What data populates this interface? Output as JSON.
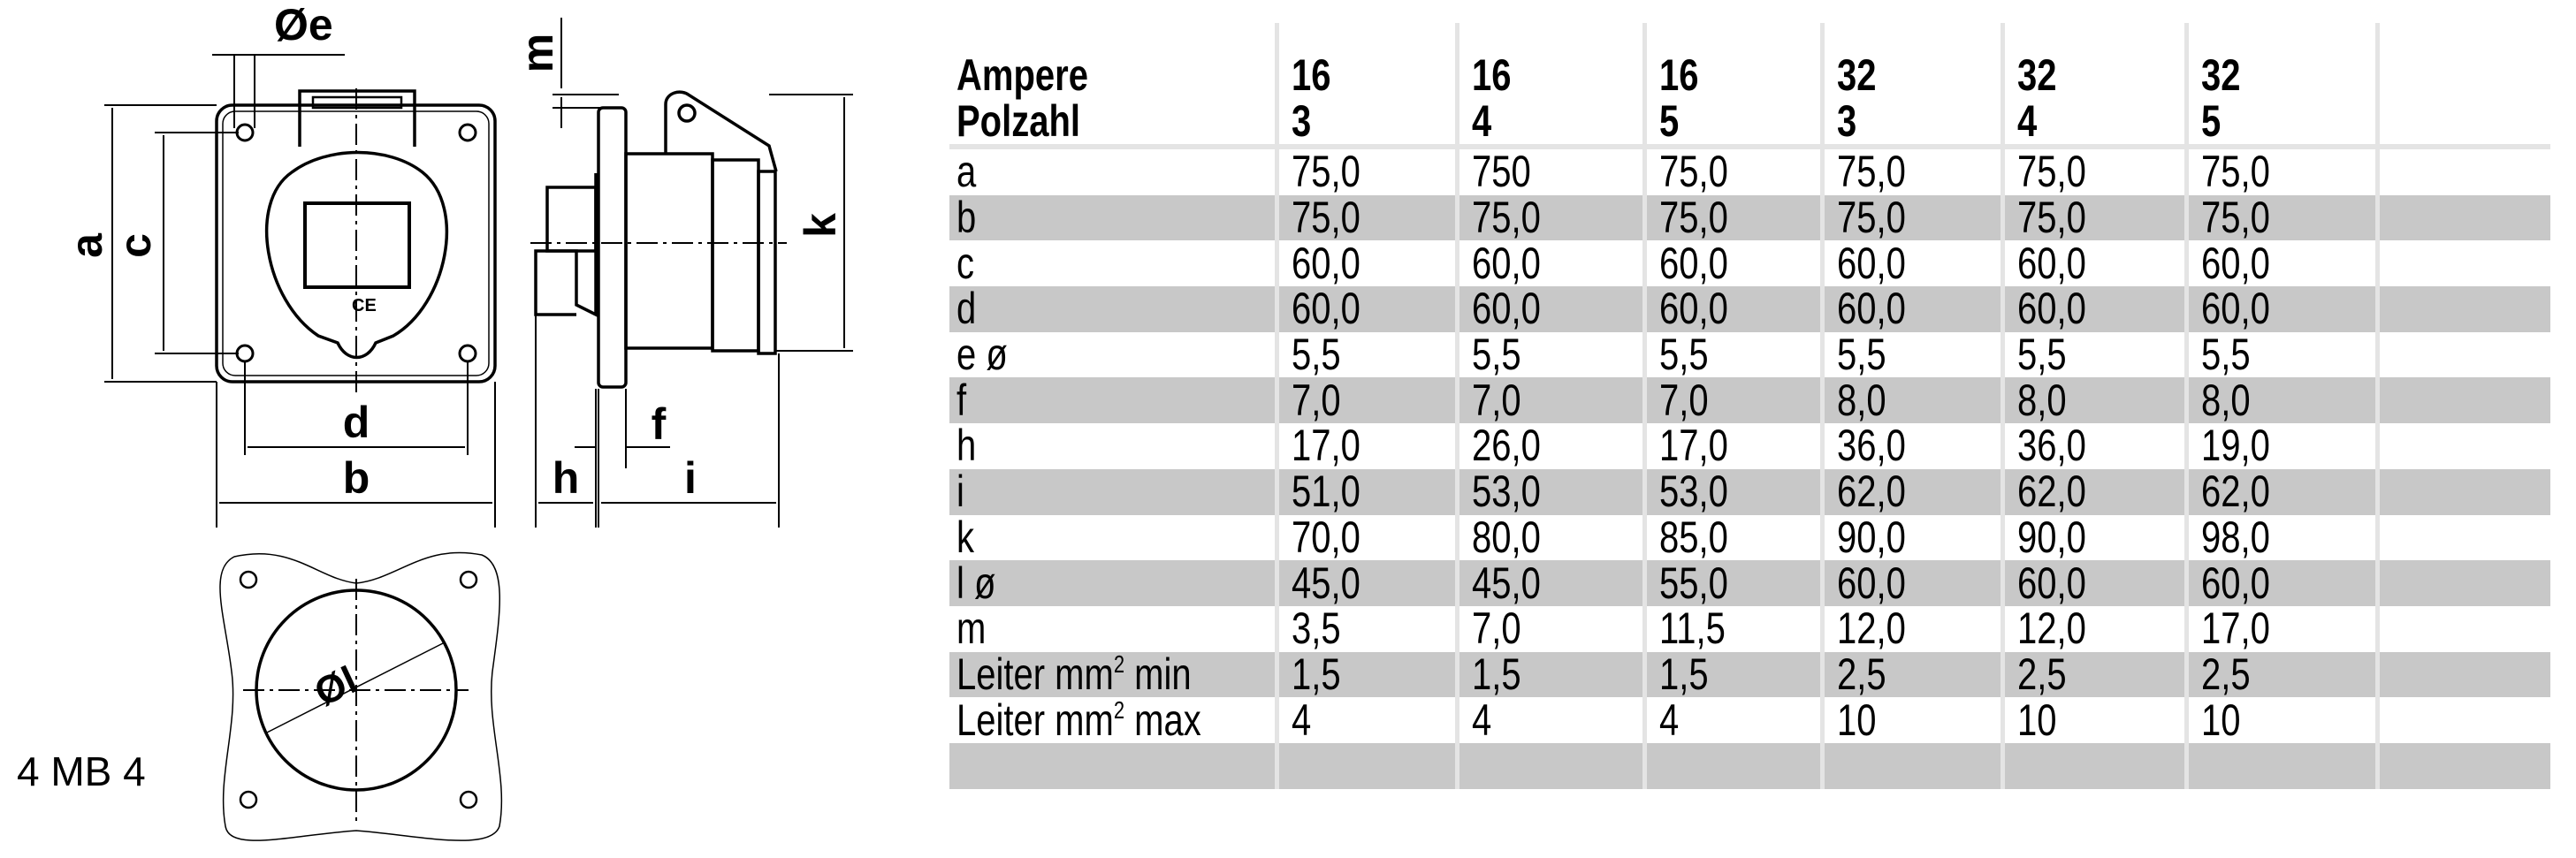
{
  "drawing": {
    "labels": {
      "a": "a",
      "b": "b",
      "c": "c",
      "d": "d",
      "e": "Øe",
      "f": "f",
      "h": "h",
      "i": "i",
      "k": "k",
      "m": "m",
      "l": "Øl"
    },
    "model": "4 MB 4"
  },
  "table": {
    "header": {
      "row1_label": "Ampere",
      "row2_label": "Polzahl",
      "columns": [
        {
          "ampere": "16",
          "polzahl": "3"
        },
        {
          "ampere": "16",
          "polzahl": "4"
        },
        {
          "ampere": "16",
          "polzahl": "5"
        },
        {
          "ampere": "32",
          "polzahl": "3"
        },
        {
          "ampere": "32",
          "polzahl": "4"
        },
        {
          "ampere": "32",
          "polzahl": "5"
        }
      ]
    },
    "rows": [
      {
        "label": "a",
        "values": [
          "75,0",
          "750",
          "75,0",
          "75,0",
          "75,0",
          "75,0"
        ]
      },
      {
        "label": "b",
        "values": [
          "75,0",
          "75,0",
          "75,0",
          "75,0",
          "75,0",
          "75,0"
        ]
      },
      {
        "label": "c",
        "values": [
          "60,0",
          "60,0",
          "60,0",
          "60,0",
          "60,0",
          "60,0"
        ]
      },
      {
        "label": "d",
        "values": [
          "60,0",
          "60,0",
          "60,0",
          "60,0",
          "60,0",
          "60,0"
        ]
      },
      {
        "label": "e ø",
        "values": [
          "5,5",
          "5,5",
          "5,5",
          "5,5",
          "5,5",
          "5,5"
        ]
      },
      {
        "label": "f",
        "values": [
          "7,0",
          "7,0",
          "7,0",
          "8,0",
          "8,0",
          "8,0"
        ]
      },
      {
        "label": "h",
        "values": [
          "17,0",
          "26,0",
          "17,0",
          "36,0",
          "36,0",
          "19,0"
        ]
      },
      {
        "label": "i",
        "values": [
          "51,0",
          "53,0",
          "53,0",
          "62,0",
          "62,0",
          "62,0"
        ]
      },
      {
        "label": "k",
        "values": [
          "70,0",
          "80,0",
          "85,0",
          "90,0",
          "90,0",
          "98,0"
        ]
      },
      {
        "label": "l ø",
        "values": [
          "45,0",
          "45,0",
          "55,0",
          "60,0",
          "60,0",
          "60,0"
        ]
      },
      {
        "label": "m",
        "values": [
          "3,5",
          "7,0",
          "11,5",
          "12,0",
          "12,0",
          "17,0"
        ]
      },
      {
        "label": "Leiter mm",
        "sup": "2",
        "suffix": " min",
        "values": [
          "1,5",
          "1,5",
          "1,5",
          "2,5",
          "2,5",
          "2,5"
        ]
      },
      {
        "label": "Leiter mm",
        "sup": "2",
        "suffix": " max",
        "values": [
          "4",
          "4",
          "4",
          "10",
          "10",
          "10"
        ]
      },
      {
        "label": "",
        "values": [
          "",
          "",
          "",
          "",
          "",
          ""
        ]
      }
    ],
    "colors": {
      "shade": "#c8c8c8",
      "grid": "#e4e4e4"
    }
  }
}
